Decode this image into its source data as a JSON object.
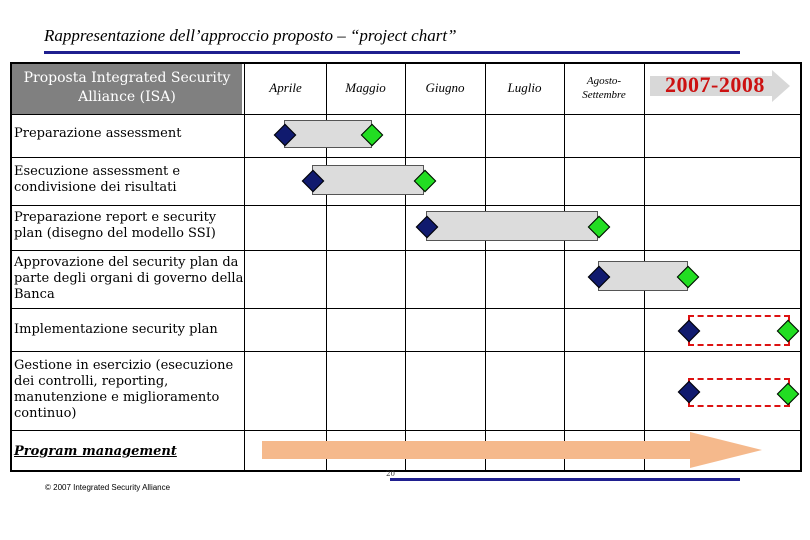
{
  "title": "Rappresentazione dell’approccio proposto – “project chart”",
  "header": "Proposta Integrated Security Alliance (ISA)",
  "months": [
    {
      "label": "Aprile"
    },
    {
      "label": "Maggio"
    },
    {
      "label": "Giugno"
    },
    {
      "label": "Luglio"
    },
    {
      "label": "Agosto-\nSettembre"
    }
  ],
  "year_label": "2007-2008",
  "tasks": [
    {
      "label": "Preparazione assessment"
    },
    {
      "label": "Esecuzione assessment e condivisione dei risultati"
    },
    {
      "label": "Preparazione report e security plan (disegno del modello SSI)"
    },
    {
      "label": "Approvazione del security plan da parte degli organi di governo della Banca"
    },
    {
      "label": "Implementazione security plan"
    },
    {
      "label": "Gestione in esercizio (esecuzione dei controlli, reporting, manutenzione e miglioramento continuo)"
    },
    {
      "label": "Program management"
    }
  ],
  "page_number": "20",
  "copyright": "© 2007 Integrated Security Alliance",
  "colors": {
    "rule": "#1f1f8f",
    "year": "#cc1111",
    "arrow": "#f5b98c",
    "start": "#101a6e",
    "end": "#22dd22"
  }
}
